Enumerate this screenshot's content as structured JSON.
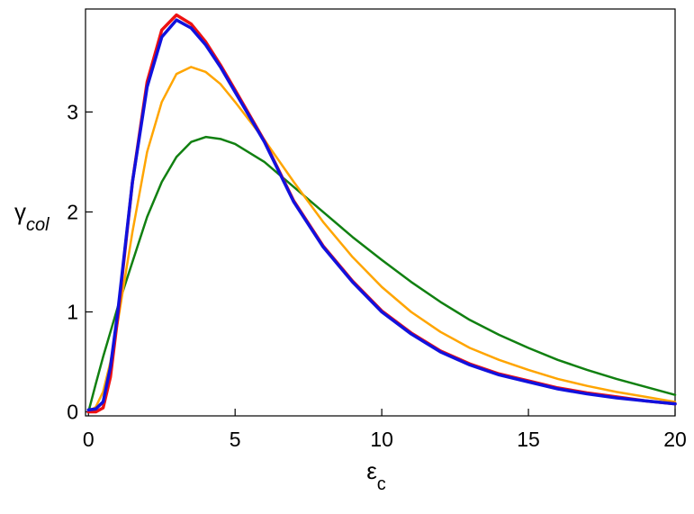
{
  "chart_data": {
    "type": "line",
    "xlabel": "ε",
    "xlabel_sub": "c",
    "ylabel": "γ",
    "ylabel_sub": "col",
    "x": [
      0,
      0.25,
      0.5,
      0.75,
      1,
      1.5,
      2,
      2.5,
      3,
      3.5,
      4,
      4.5,
      5,
      6,
      7,
      8,
      9,
      10,
      11,
      12,
      13,
      14,
      15,
      16,
      17,
      18,
      19,
      20
    ],
    "series": [
      {
        "color": "#118011",
        "width": 2.5,
        "values": [
          0,
          0.28,
          0.55,
          0.8,
          1.05,
          1.5,
          1.95,
          2.3,
          2.55,
          2.7,
          2.75,
          2.73,
          2.68,
          2.5,
          2.25,
          2.0,
          1.75,
          1.52,
          1.3,
          1.1,
          0.92,
          0.77,
          0.64,
          0.52,
          0.42,
          0.33,
          0.25,
          0.17
        ]
      },
      {
        "color": "#ffa500",
        "width": 2.5,
        "values": [
          0,
          0.05,
          0.2,
          0.5,
          0.9,
          1.8,
          2.6,
          3.1,
          3.38,
          3.45,
          3.4,
          3.28,
          3.1,
          2.72,
          2.3,
          1.9,
          1.55,
          1.25,
          1.0,
          0.8,
          0.64,
          0.52,
          0.42,
          0.33,
          0.26,
          0.2,
          0.15,
          0.1
        ]
      },
      {
        "color": "#ee1111",
        "width": 3.5,
        "values": [
          0,
          0,
          0.04,
          0.35,
          0.95,
          2.3,
          3.3,
          3.82,
          3.97,
          3.88,
          3.7,
          3.47,
          3.22,
          2.71,
          2.11,
          1.66,
          1.31,
          1.01,
          0.79,
          0.61,
          0.48,
          0.38,
          0.31,
          0.24,
          0.19,
          0.15,
          0.11,
          0.08
        ]
      },
      {
        "color": "#1111dd",
        "width": 3.5,
        "values": [
          0.02,
          0.03,
          0.1,
          0.45,
          1.0,
          2.3,
          3.25,
          3.75,
          3.92,
          3.84,
          3.67,
          3.45,
          3.2,
          2.7,
          2.1,
          1.65,
          1.3,
          1.0,
          0.78,
          0.6,
          0.47,
          0.37,
          0.3,
          0.23,
          0.18,
          0.14,
          0.11,
          0.08
        ]
      }
    ],
    "xlim": [
      -0.1,
      20
    ],
    "ylim": [
      -0.04,
      4.03
    ],
    "xticks": [
      0,
      5,
      10,
      15,
      20
    ],
    "yticks": [
      0,
      1,
      2,
      3
    ]
  }
}
